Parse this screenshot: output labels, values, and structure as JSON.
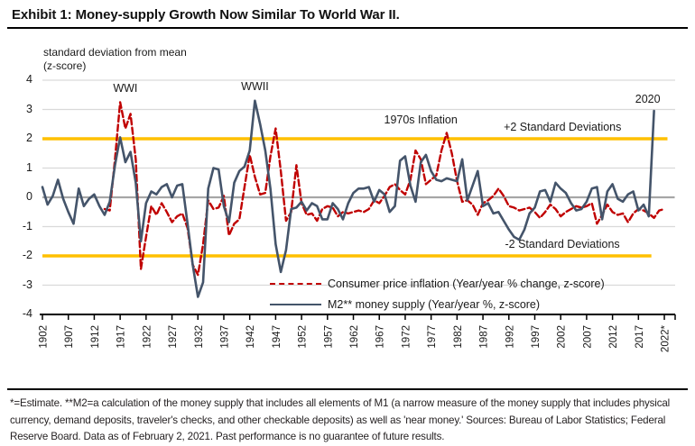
{
  "header": {
    "title": "Exhibit 1: Money-supply Growth Now Similar To World War II."
  },
  "footnote": "*=Estimate.  **M2=a calculation of the money supply that includes all elements of M1 (a narrow measure of the money supply that includes physical currency, demand deposits, traveler's checks, and other checkable deposits) as well as 'near money.' Sources: Bureau of Labor Statistics; Federal Reserve Board. Data as of February 2, 2021. Past performance is no guarantee of future results.",
  "chart_data": {
    "type": "line",
    "title": "Money-supply Growth Now Similar To World War II",
    "y_axis_label_line1": "standard deviation from mean",
    "y_axis_label_line2": "(z-score)",
    "ylim": [
      -4,
      4
    ],
    "y_ticks": [
      4,
      3,
      2,
      1,
      0,
      -1,
      -2,
      -3,
      -4
    ],
    "gridline_values": [
      4,
      3,
      1,
      -1,
      -3
    ],
    "x_tick_years": [
      1902,
      1907,
      1912,
      1917,
      1922,
      1927,
      1932,
      1937,
      1942,
      1947,
      1952,
      1957,
      1962,
      1967,
      1972,
      1977,
      1982,
      1987,
      1992,
      1997,
      2002,
      2007,
      2012,
      2017,
      2022
    ],
    "x_tick_labels": [
      "1902",
      "1907",
      "1912",
      "1917",
      "1922",
      "1927",
      "1932",
      "1937",
      "1942",
      "1947",
      "1952",
      "1957",
      "1962",
      "1967",
      "1972",
      "1977",
      "1982",
      "1987",
      "1992",
      "1997",
      "2002",
      "2007",
      "2012",
      "2017",
      "2022*"
    ],
    "grid": "horizontal",
    "legend_position": "bottom-inside",
    "colors": {
      "gridline": "#d9d9d9",
      "zero_line": "#a6a6a6",
      "band_line": "#ffc000",
      "cpi": "#c00000",
      "m2": "#44546a",
      "axis": "#000000"
    },
    "reference_lines": [
      {
        "id": "plus2",
        "label": "+2 Standard Deviations",
        "value": 2,
        "color": "#ffc000",
        "width": 3.6,
        "x_end_year": 2022.6
      },
      {
        "id": "minus2",
        "label": "-2 Standard Deviations",
        "value": -2,
        "color": "#ffc000",
        "width": 3.6,
        "x_end_year": 2019.5
      },
      {
        "id": "zero",
        "label": "",
        "value": 0,
        "color": "#a6a6a6",
        "width": 2.2,
        "x_end_year": 2024
      }
    ],
    "annotations": [
      {
        "id": "wwi",
        "text": "WWI",
        "x_year": 1918,
        "y_value": 3.93,
        "anchor": "middle"
      },
      {
        "id": "wwii",
        "text": "WWII",
        "x_year": 1943,
        "y_value": 4.0,
        "anchor": "middle"
      },
      {
        "id": "1970s",
        "text": "1970s Inflation",
        "x_year": 1975,
        "y_value": 2.87,
        "anchor": "middle"
      },
      {
        "id": "2020",
        "text": "2020",
        "x_year": 2018.8,
        "y_value": 3.58,
        "anchor": "middle"
      },
      {
        "id": "plus2-label",
        "text": "+2 Standard Deviations",
        "x_year": 2013.7,
        "y_value": 2.62,
        "anchor": "end"
      },
      {
        "id": "minus2-label",
        "text": "-2 Standard Deviations",
        "x_year": 2013.4,
        "y_value": -1.37,
        "anchor": "end"
      }
    ],
    "series": [
      {
        "name": "Consumer price inflation (Year/year % change, z-score)",
        "data_name": "cpi-line",
        "color": "#c00000",
        "dashed": true,
        "width": 2.4,
        "start_year": 1914,
        "end_year": 2022,
        "values": [
          -0.4,
          -0.45,
          1.3,
          3.25,
          2.35,
          2.85,
          1.3,
          -2.45,
          -1.35,
          -0.3,
          -0.6,
          -0.2,
          -0.5,
          -0.85,
          -0.65,
          -0.55,
          -1.05,
          -2.3,
          -2.65,
          -1.6,
          -0.1,
          -0.4,
          -0.35,
          0.05,
          -1.3,
          -0.9,
          -0.75,
          0.35,
          1.45,
          0.7,
          0.1,
          0.15,
          1.4,
          2.35,
          0.9,
          -0.8,
          -0.5,
          1.1,
          -0.2,
          -0.6,
          -0.55,
          -0.8,
          -0.4,
          -0.3,
          -0.35,
          -0.65,
          -0.5,
          -0.55,
          -0.5,
          -0.45,
          -0.5,
          -0.4,
          -0.1,
          -0.2,
          0.05,
          0.35,
          0.45,
          0.25,
          0.1,
          0.6,
          1.6,
          1.3,
          0.45,
          0.6,
          0.75,
          1.6,
          2.2,
          1.5,
          0.55,
          -0.15,
          -0.1,
          -0.25,
          -0.6,
          -0.2,
          -0.1,
          0.05,
          0.3,
          0.05,
          -0.3,
          -0.35,
          -0.45,
          -0.4,
          -0.35,
          -0.5,
          -0.7,
          -0.5,
          -0.25,
          -0.4,
          -0.65,
          -0.5,
          -0.4,
          -0.3,
          -0.35,
          -0.3,
          -0.2,
          -0.9,
          -0.6,
          -0.25,
          -0.5,
          -0.6,
          -0.55,
          -0.85,
          -0.55,
          -0.4,
          -0.45,
          -0.55,
          -0.7,
          -0.45,
          -0.4
        ]
      },
      {
        "name": "M2** money supply (Year/year %, z-score)",
        "data_name": "m2-line",
        "color": "#44546a",
        "dashed": false,
        "width": 2.6,
        "start_year": 1902,
        "end_year": 2020,
        "values": [
          0.35,
          -0.25,
          0.05,
          0.6,
          -0.05,
          -0.5,
          -0.9,
          0.3,
          -0.3,
          -0.05,
          0.1,
          -0.3,
          -0.6,
          -0.15,
          1.1,
          2.05,
          1.2,
          1.55,
          0.5,
          -1.5,
          -0.2,
          0.2,
          0.1,
          0.35,
          0.45,
          0.0,
          0.4,
          0.45,
          -0.9,
          -2.3,
          -3.4,
          -2.9,
          0.3,
          1.0,
          0.95,
          -0.3,
          -0.85,
          0.5,
          0.9,
          1.05,
          1.6,
          3.3,
          2.5,
          1.6,
          0.3,
          -1.6,
          -2.55,
          -1.8,
          -0.4,
          -0.35,
          -0.15,
          -0.45,
          -0.2,
          -0.3,
          -0.75,
          -0.75,
          -0.2,
          -0.4,
          -0.75,
          -0.2,
          0.15,
          0.3,
          0.3,
          0.35,
          -0.15,
          0.25,
          0.1,
          -0.5,
          -0.3,
          1.25,
          1.4,
          0.4,
          -0.15,
          1.2,
          1.45,
          0.9,
          0.6,
          0.55,
          0.65,
          0.6,
          0.55,
          1.3,
          -0.1,
          0.4,
          0.9,
          -0.3,
          -0.2,
          -0.55,
          -0.5,
          -0.8,
          -1.1,
          -1.35,
          -1.45,
          -1.1,
          -0.55,
          -0.35,
          0.2,
          0.25,
          -0.15,
          0.5,
          0.3,
          0.15,
          -0.2,
          -0.45,
          -0.4,
          -0.15,
          0.3,
          0.35,
          -0.75,
          0.2,
          0.45,
          -0.05,
          -0.15,
          0.1,
          0.2,
          -0.45,
          -0.25,
          -0.65,
          2.95
        ]
      }
    ]
  }
}
